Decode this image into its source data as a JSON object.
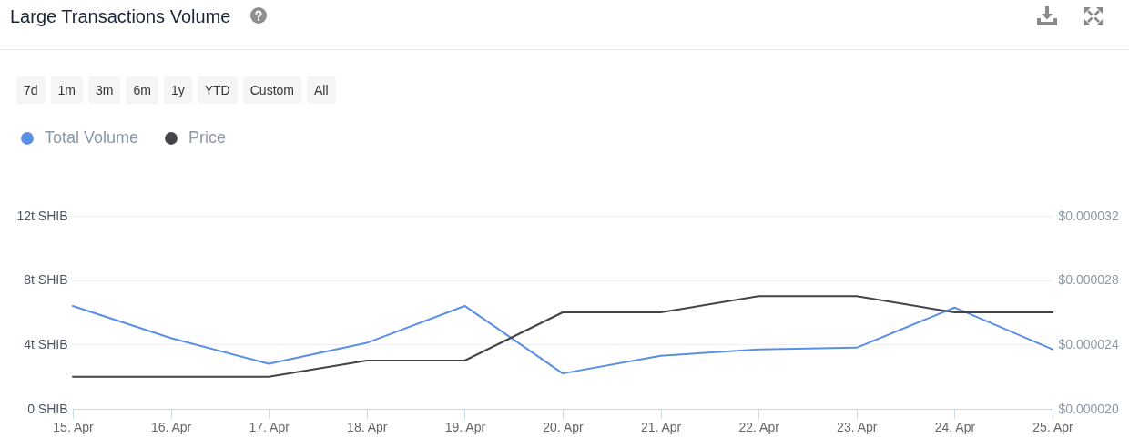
{
  "chart_data": {
    "type": "line",
    "title": "Large Transactions Volume",
    "annotations": [
      "7d",
      "1m",
      "3m",
      "6m",
      "1y",
      "YTD",
      "Custom",
      "All"
    ],
    "categories": [
      "15. Apr",
      "16. Apr",
      "17. Apr",
      "18. Apr",
      "19. Apr",
      "20. Apr",
      "21. Apr",
      "22. Apr",
      "23. Apr",
      "24. Apr",
      "25. Apr"
    ],
    "series": [
      {
        "name": "Total Volume",
        "color": "#5b8fe3",
        "values": [
          6.4,
          4.4,
          2.8,
          4.1,
          6.4,
          2.2,
          3.3,
          3.7,
          3.8,
          6.3,
          3.7
        ]
      },
      {
        "name": "Price",
        "color": "#434348",
        "axis": "y2",
        "values": [
          2.2e-05,
          2.2e-05,
          2.2e-05,
          2.3e-05,
          2.3e-05,
          2.6e-05,
          2.6e-05,
          2.7e-05,
          2.7e-05,
          2.6e-05,
          2.6e-05
        ]
      }
    ],
    "ylim": [
      0,
      12
    ],
    "yticks": [
      {
        "value": 0,
        "label": "0 SHIB"
      },
      {
        "value": 4,
        "label": "4t SHIB"
      },
      {
        "value": 8,
        "label": "8t SHIB"
      },
      {
        "value": 12,
        "label": "12t SHIB"
      }
    ],
    "y2lim": [
      2e-05,
      3.2e-05
    ],
    "y2ticks": [
      {
        "value": 2e-05,
        "label": "$0.000020"
      },
      {
        "value": 2.4e-05,
        "label": "$0.000024"
      },
      {
        "value": 2.8e-05,
        "label": "$0.000028"
      },
      {
        "value": 3.2e-05,
        "label": "$0.000032"
      }
    ],
    "grid": "y",
    "legend": "top left"
  }
}
